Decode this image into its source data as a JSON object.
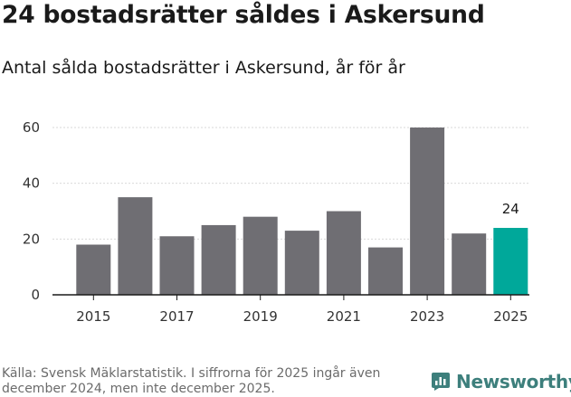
{
  "header": {
    "title": "24 bostadsrätter såldes i Askersund",
    "subtitle": "Antal sålda bostadsrätter i Askersund, år för år"
  },
  "footer": {
    "source": "Källa: Svensk Mäklarstatistik. I siffrorna för 2025 ingår även december 2024, men inte december 2025.",
    "brand": "Newsworthy",
    "brand_icon": "bar-chart-speech-icon"
  },
  "colors": {
    "bar": "#6f6e73",
    "highlight": "#00a89a",
    "brand": "#3d7f7c"
  },
  "chart_data": {
    "type": "bar",
    "categories": [
      "2015",
      "2016",
      "2017",
      "2018",
      "2019",
      "2020",
      "2021",
      "2022",
      "2023",
      "2024",
      "2025"
    ],
    "values": [
      18,
      35,
      21,
      25,
      28,
      23,
      30,
      17,
      60,
      22,
      24
    ],
    "x_tick_labels": [
      "2015",
      "2017",
      "2019",
      "2021",
      "2023",
      "2025"
    ],
    "y_ticks": [
      0,
      20,
      40,
      60
    ],
    "ylim": [
      0,
      65
    ],
    "highlight_category": "2025",
    "data_labels": [
      {
        "category": "2025",
        "text": "24"
      }
    ],
    "grid": true,
    "title": "24 bostadsrätter såldes i Askersund",
    "subtitle": "Antal sålda bostadsrätter i Askersund, år för år",
    "xlabel": "",
    "ylabel": ""
  }
}
